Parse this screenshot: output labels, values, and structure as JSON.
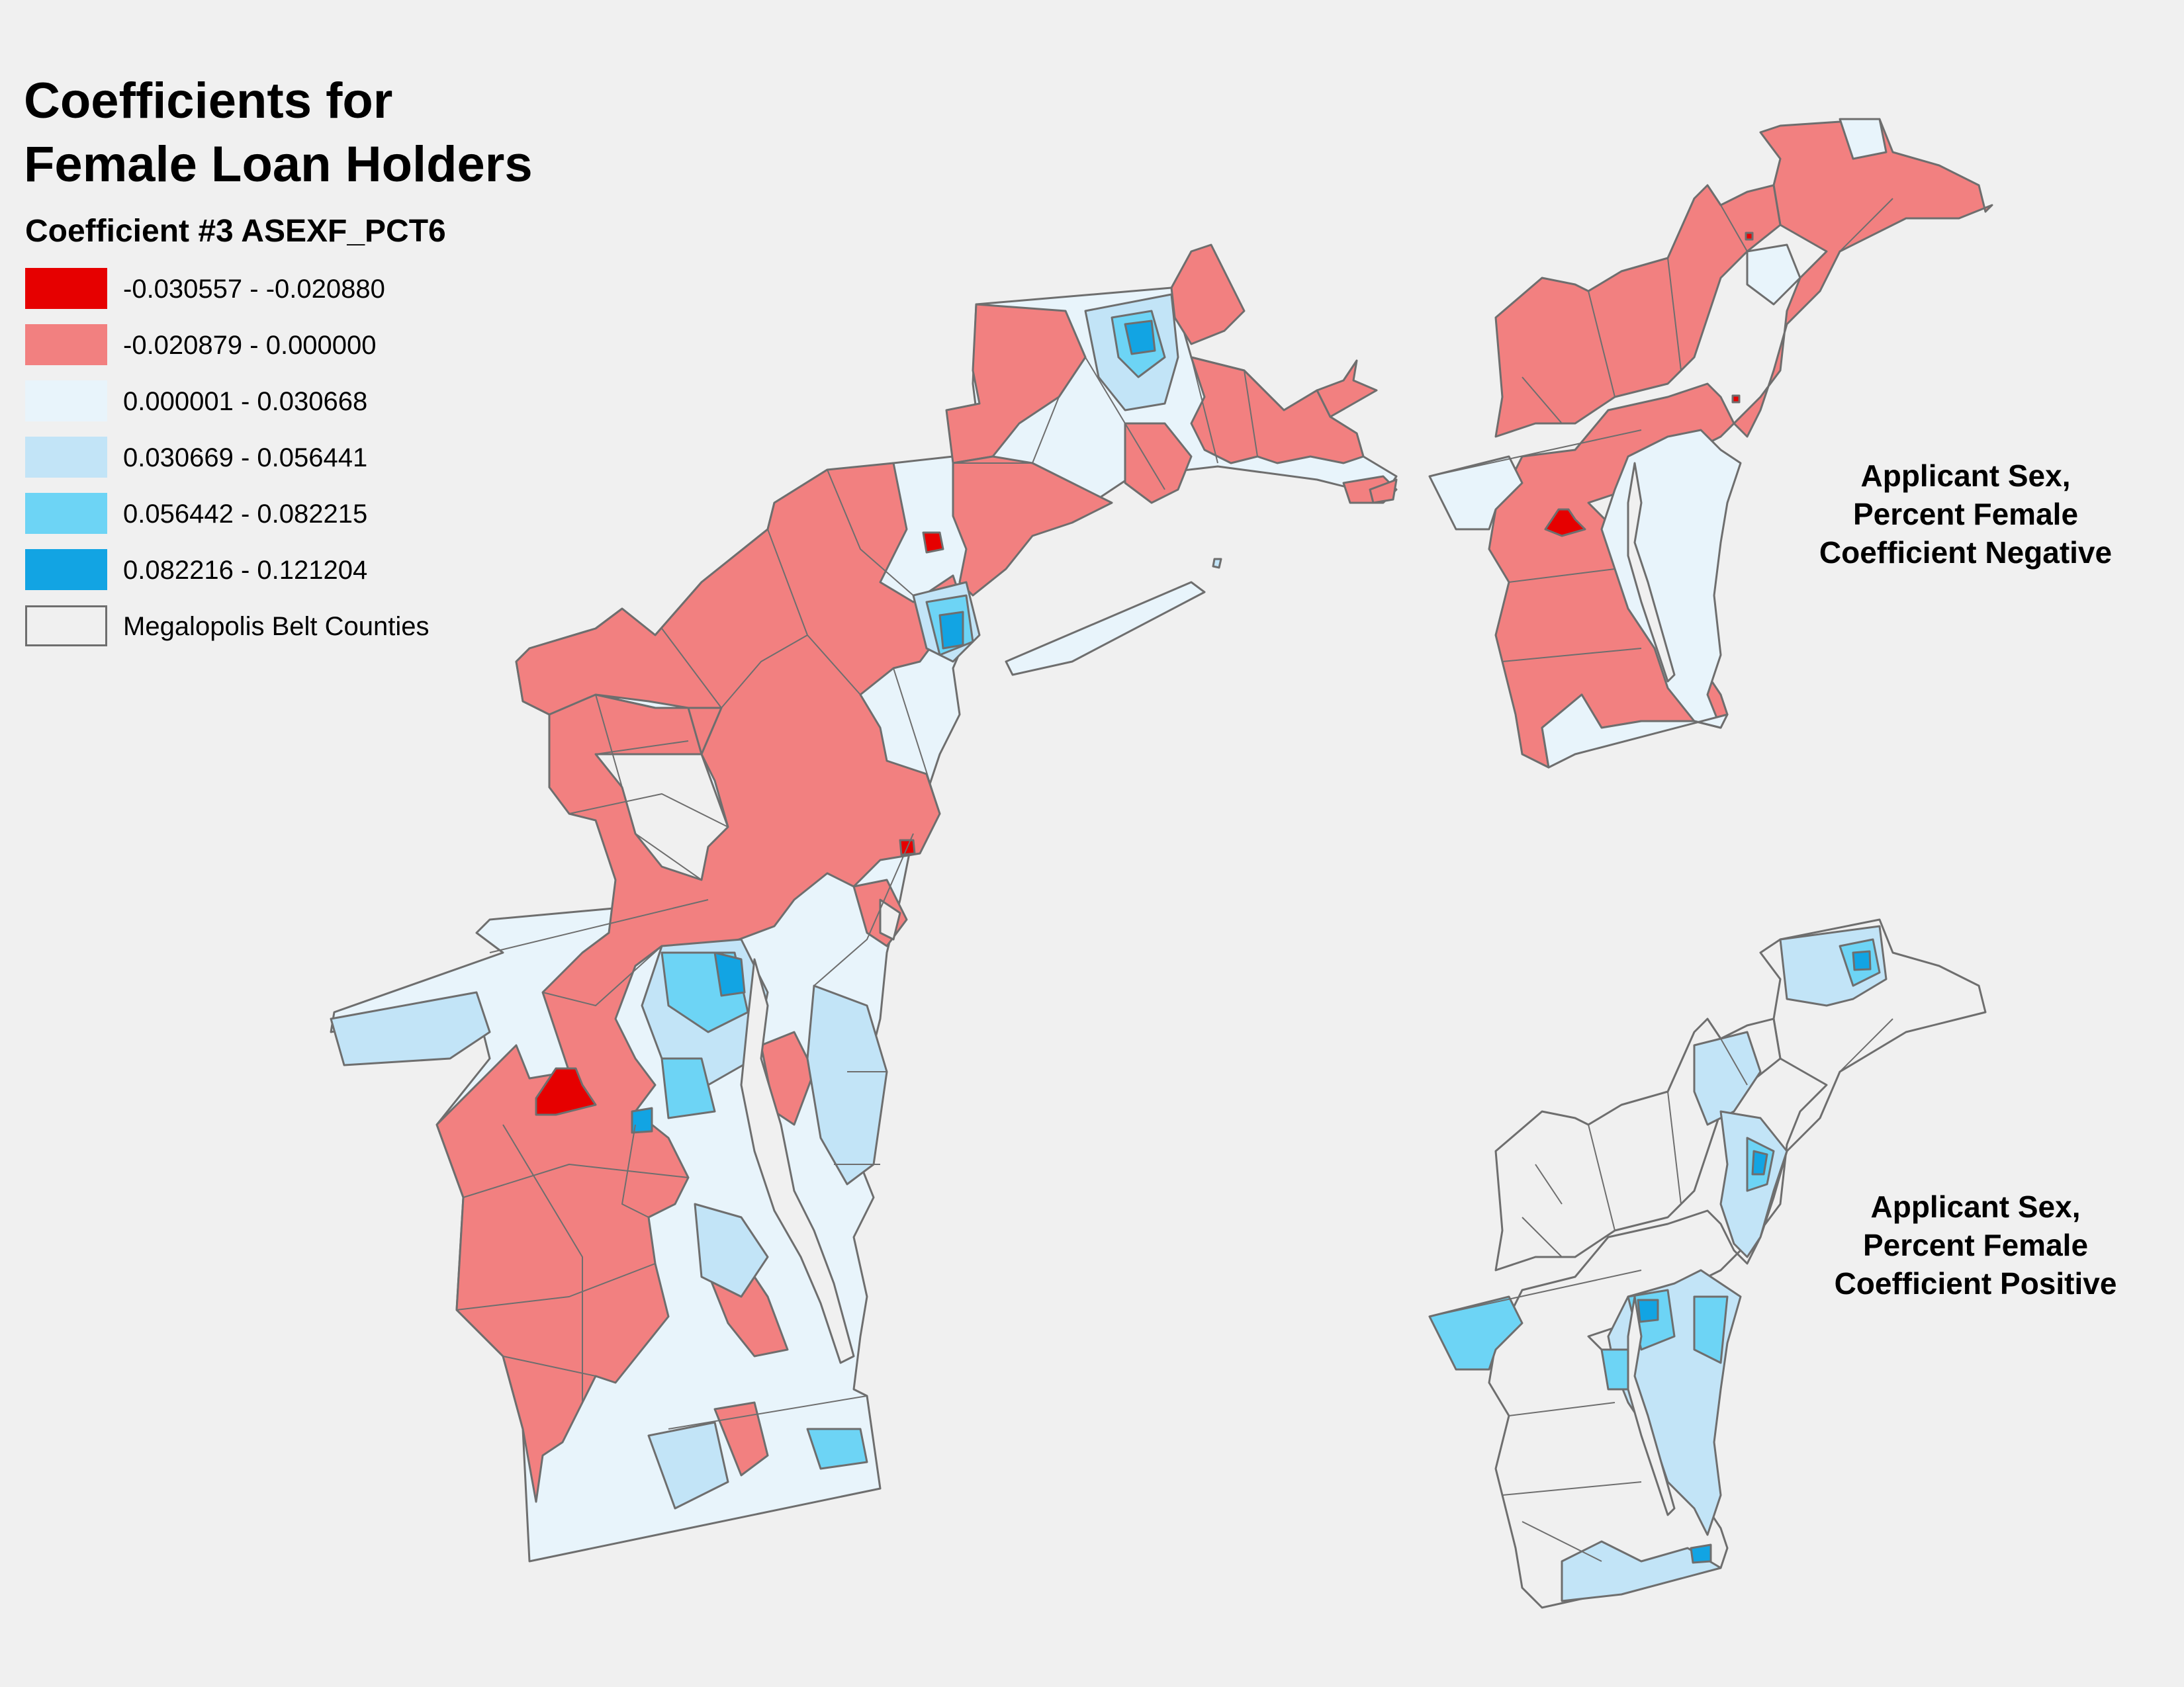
{
  "title_lines": [
    "Coefficients for",
    "Female Loan Holders"
  ],
  "legend": {
    "heading": "Coefficient #3 ASEXF_PCT6",
    "items": [
      {
        "label": "-0.030557 - -0.020880",
        "color": "#e60000"
      },
      {
        "label": "-0.020879 - 0.000000",
        "color": "#f28080"
      },
      {
        "label": "0.000001 - 0.030668",
        "color": "#e8f4fb"
      },
      {
        "label": "0.030669 - 0.056441",
        "color": "#c2e4f7"
      },
      {
        "label": "0.056442 - 0.082215",
        "color": "#6dd4f5"
      },
      {
        "label": "0.082216 - 0.121204",
        "color": "#12a4e3"
      },
      {
        "label": "Megalopolis Belt Counties",
        "color": "#f0f0f0",
        "outline": "#6e6e6e"
      }
    ]
  },
  "inset_negative": {
    "lines": [
      "Applicant Sex,",
      "Percent Female",
      "Coefficient Negative"
    ]
  },
  "inset_positive": {
    "lines": [
      "Applicant Sex,",
      "Percent Female",
      "Coefficient Positive"
    ]
  },
  "colors": {
    "background": "#f0f0f0",
    "border": "#6e6e6e"
  }
}
